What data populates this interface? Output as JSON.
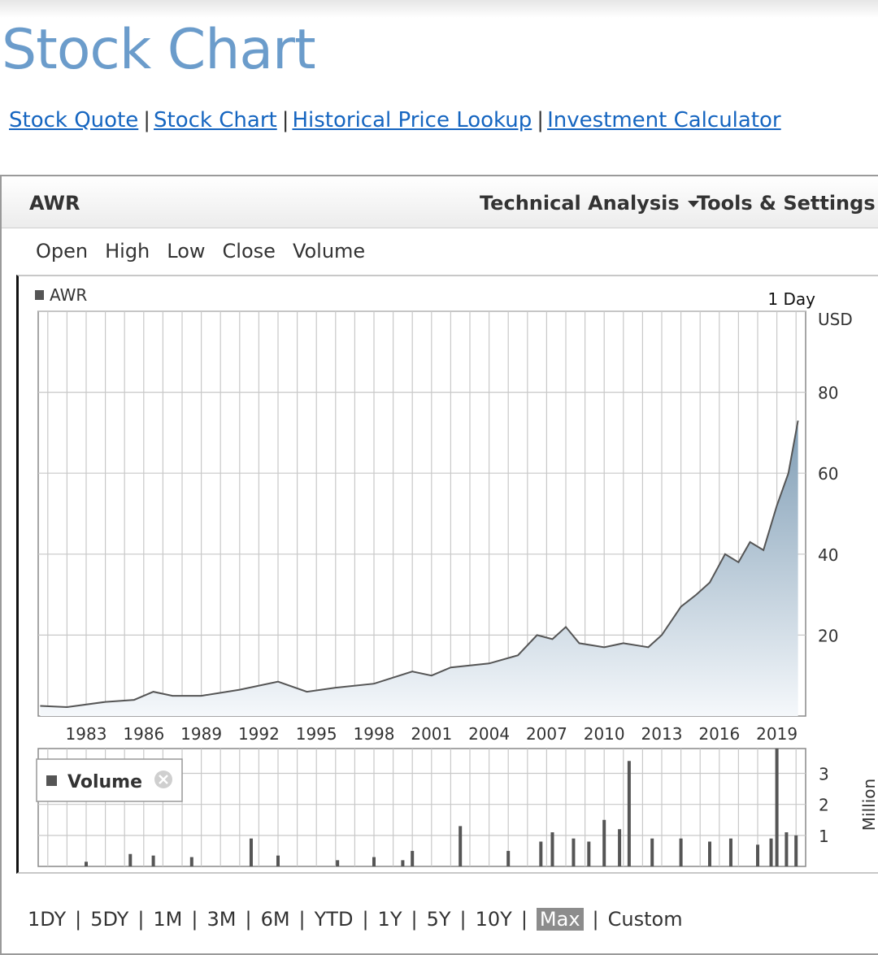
{
  "page": {
    "title": "Stock Chart",
    "nav_links": [
      "Stock Quote",
      "Stock Chart",
      "Historical Price Lookup",
      "Investment Calculator"
    ]
  },
  "widget": {
    "ticker": "AWR",
    "menus": {
      "technical_analysis": "Technical Analysis",
      "tools_settings": "Tools & Settings"
    },
    "fields": [
      "Open",
      "High",
      "Low",
      "Close",
      "Volume"
    ],
    "range_buttons": [
      "1DY",
      "5DY",
      "1M",
      "3M",
      "6M",
      "YTD",
      "1Y",
      "5Y",
      "10Y",
      "Max",
      "Custom"
    ],
    "active_range": "Max"
  },
  "colors": {
    "title": "#6b9ccb",
    "link": "#1565c0",
    "price_line": "#555555",
    "area_top": "#7f9db5",
    "area_bottom": "#f5f8fb",
    "volume_bar": "#555555",
    "active_range_bg": "#8c8c8c"
  },
  "chart_data": [
    {
      "type": "area",
      "legend": "AWR",
      "interval": "1 Day",
      "ylabel": "USD",
      "ylim": [
        0,
        100
      ],
      "y_ticks": [
        20,
        40,
        60,
        80
      ],
      "x_range": [
        1980.5,
        2020.5
      ],
      "x_ticks": [
        "1983",
        "1986",
        "1989",
        "1992",
        "1995",
        "1998",
        "2001",
        "2004",
        "2007",
        "2010",
        "2013",
        "2016",
        "2019"
      ],
      "grid": true,
      "legend_position": "top-left",
      "series": [
        {
          "name": "AWR",
          "x": [
            1980.6,
            1982,
            1984,
            1985.5,
            1986.5,
            1987.5,
            1989,
            1991,
            1993,
            1994.5,
            1996,
            1998,
            2000,
            2001,
            2002,
            2004,
            2005.5,
            2006.5,
            2007.3,
            2008,
            2008.7,
            2010,
            2011,
            2012.3,
            2013,
            2014,
            2014.8,
            2015.5,
            2016.3,
            2017,
            2017.6,
            2018.3,
            2019,
            2019.6,
            2020.1
          ],
          "y": [
            2.5,
            2.2,
            3.5,
            4.0,
            6.0,
            5.0,
            5.0,
            6.5,
            8.5,
            6.0,
            7.0,
            8.0,
            11.0,
            10.0,
            12.0,
            13.0,
            15.0,
            20.0,
            19.0,
            22.0,
            18.0,
            17.0,
            18.0,
            17.0,
            20.0,
            27.0,
            30.0,
            33.0,
            40.0,
            38.0,
            43.0,
            41.0,
            52.0,
            60.0,
            73.0
          ]
        }
      ]
    },
    {
      "type": "bar",
      "legend": "Volume",
      "ylabel": "Million",
      "ylim": [
        0,
        3.8
      ],
      "y_ticks": [
        1,
        2,
        3
      ],
      "x_range": [
        1980.5,
        2020.5
      ],
      "grid": true,
      "legend_position": "top-left",
      "series": [
        {
          "name": "Volume",
          "x": [
            1983.0,
            1985.3,
            1986.5,
            1988.5,
            1991.6,
            1993.0,
            1996.1,
            1998.0,
            1999.5,
            2000.0,
            2002.5,
            2005.0,
            2006.7,
            2007.3,
            2008.4,
            2009.2,
            2010.0,
            2010.8,
            2011.3,
            2012.5,
            2014.0,
            2015.5,
            2016.6,
            2018.0,
            2018.7,
            2019.0,
            2019.5,
            2020.0
          ],
          "values": [
            0.15,
            0.4,
            0.35,
            0.3,
            0.9,
            0.35,
            0.2,
            0.3,
            0.2,
            0.5,
            1.3,
            0.5,
            0.8,
            1.1,
            0.9,
            0.8,
            1.5,
            1.2,
            3.4,
            0.9,
            0.9,
            0.8,
            0.9,
            0.7,
            0.9,
            3.8,
            1.1,
            1.0
          ]
        }
      ]
    }
  ]
}
